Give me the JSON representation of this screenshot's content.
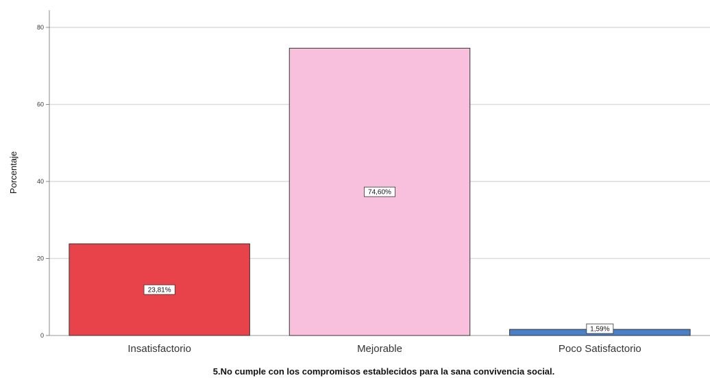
{
  "chart_data": {
    "type": "bar",
    "categories": [
      "Insatisfactorio",
      "Mejorable",
      "Poco Satisfactorio"
    ],
    "values": [
      23.81,
      74.6,
      1.59
    ],
    "data_labels": [
      "23,81%",
      "74,60%",
      "1,59%"
    ],
    "colors": [
      "#e8434a",
      "#f9c0de",
      "#4a80c8"
    ],
    "ylabel": "Porcentaje",
    "xlabel": "5.No cumple con los compromisos establecidos para la sana convivencia social.",
    "ylim": [
      0,
      80
    ],
    "yticks": [
      0,
      20,
      40,
      60,
      80
    ],
    "grid": true
  }
}
